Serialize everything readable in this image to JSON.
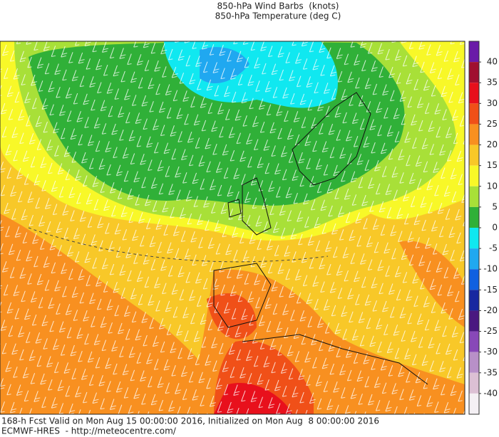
{
  "header": {
    "lines": [
      "850-hPa Wind Barbs  (knots)",
      "850-hPa Temperature (deg C)"
    ]
  },
  "colorbar": {
    "ticks": [
      40,
      35,
      30,
      25,
      20,
      15,
      10,
      5,
      0,
      -5,
      -10,
      -15,
      -20,
      -25,
      -30,
      -35,
      -40
    ],
    "colors": [
      "#6a1aa8",
      "#a01030",
      "#e8101c",
      "#f05018",
      "#f89020",
      "#f8c828",
      "#f8f828",
      "#a8e038",
      "#30b038",
      "#10e8f0",
      "#20a8f0",
      "#1060e0",
      "#1828a0",
      "#4a1880",
      "#8848b8",
      "#b890c8",
      "#dcc0d4",
      "#f4f0f4"
    ]
  },
  "footer": {
    "lines": [
      "168-h Fcst Valid on Mon Aug 15 00:00:00 2016, Initialized on Mon Aug  8 00:00:00 2016",
      "ECMWF-HRES  - http://meteocentre.com/"
    ]
  }
}
